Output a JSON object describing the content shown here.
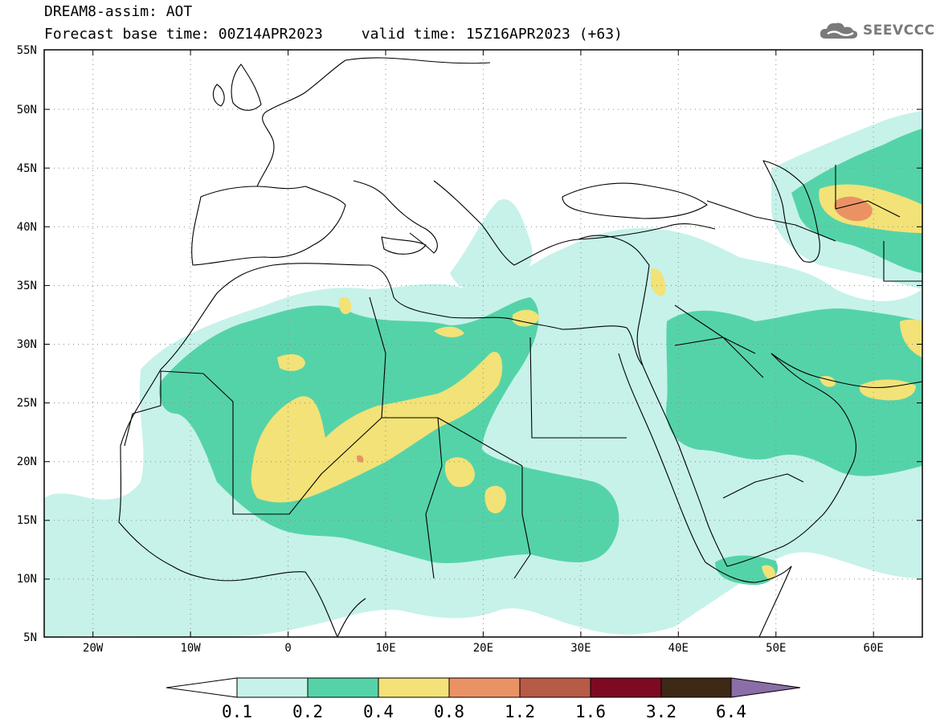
{
  "header": {
    "title": "DREAM8-assim: AOT",
    "base_time": "Forecast base time: 00Z14APR2023",
    "valid_time": "valid time: 15Z16APR2023 (+63)"
  },
  "logo": {
    "text": "SEEVCCC",
    "icon": "cloud-icon"
  },
  "map": {
    "variable": "AOT",
    "lon_range": [
      -25,
      65
    ],
    "lat_range": [
      5,
      55
    ],
    "grid": "dotted",
    "lat_labels": [
      "55N",
      "50N",
      "45N",
      "40N",
      "35N",
      "30N",
      "25N",
      "20N",
      "15N",
      "10N",
      "5N"
    ],
    "lon_labels": [
      "20W",
      "10W",
      "0",
      "10E",
      "20E",
      "30E",
      "40E",
      "50E",
      "60E"
    ]
  },
  "colorbar": {
    "colors": [
      "#ffffff",
      "#c6f2ea",
      "#55d3a8",
      "#f2e278",
      "#eb9265",
      "#b85a48",
      "#7e0a22",
      "#3e2816",
      "#8b6da8"
    ],
    "labels": [
      "0.1",
      "0.2",
      "0.4",
      "0.8",
      "1.2",
      "1.6",
      "3.2",
      "6.4"
    ]
  }
}
